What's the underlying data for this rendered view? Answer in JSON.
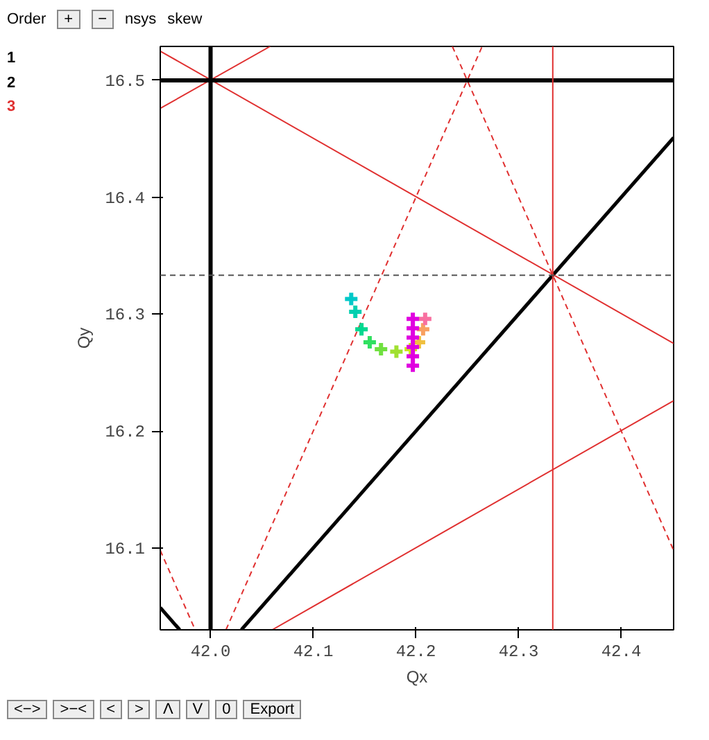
{
  "chart_data": {
    "type": "scatter",
    "xlabel": "Qx",
    "ylabel": "Qy",
    "xlim": [
      41.951,
      42.451
    ],
    "ylim": [
      16.03,
      16.529
    ],
    "xticks": [
      {
        "value": 42.0,
        "label": "42.0"
      },
      {
        "value": 42.1,
        "label": "42.1"
      },
      {
        "value": 42.2,
        "label": "42.2"
      },
      {
        "value": 42.3,
        "label": "42.3"
      },
      {
        "value": 42.4,
        "label": "42.4"
      }
    ],
    "yticks": [
      {
        "value": 16.1,
        "label": "16.1"
      },
      {
        "value": 16.2,
        "label": "16.2"
      },
      {
        "value": 16.3,
        "label": "16.3"
      },
      {
        "value": 16.4,
        "label": "16.4"
      },
      {
        "value": 16.5,
        "label": "16.5"
      }
    ],
    "grid": false,
    "annotations": [
      "Order",
      "+",
      "−",
      "nsys",
      "skew",
      "1",
      "2",
      "3",
      "<−>",
      ">−<",
      "<",
      ">",
      "Λ",
      "V",
      "0",
      "Export"
    ],
    "ref_lines": [
      {
        "axis": "x",
        "value": 42.0,
        "label": null,
        "color": "#000000",
        "line_style": "solid"
      },
      {
        "axis": "y",
        "value": 16.5,
        "label": null,
        "color": "#000000",
        "line_style": "solid"
      },
      {
        "axis": "x",
        "value": 42.3333,
        "label": null,
        "color": "#e03030",
        "line_style": "solid"
      },
      {
        "axis": "y",
        "value": 16.3333,
        "label": null,
        "color": "#555555",
        "line_style": "dashed"
      }
    ],
    "series": [
      {
        "type": "line",
        "color": "#000000",
        "line_style": "solid",
        "x": [
          42.03,
          42.451
        ],
        "values": [
          16.03,
          16.451
        ]
      },
      {
        "type": "line",
        "color": "#000000",
        "line_style": "solid",
        "x": [
          41.951,
          41.97
        ],
        "values": [
          16.049,
          16.03
        ]
      },
      {
        "type": "line",
        "color": "#e03030",
        "line_style": "solid",
        "x": [
          41.951,
          42.451
        ],
        "values": [
          16.525,
          16.275
        ]
      },
      {
        "type": "line",
        "color": "#e03030",
        "line_style": "solid",
        "x": [
          41.951,
          42.058
        ],
        "values": [
          16.476,
          16.529
        ]
      },
      {
        "type": "line",
        "color": "#e03030",
        "line_style": "solid",
        "x": [
          42.06,
          42.451
        ],
        "values": [
          16.03,
          16.226
        ]
      },
      {
        "type": "line",
        "color": "#e03030",
        "line_style": "dashed",
        "x": [
          42.015,
          42.2645
        ],
        "values": [
          16.03,
          16.529
        ]
      },
      {
        "type": "line",
        "color": "#e03030",
        "line_style": "dashed",
        "x": [
          42.2355,
          42.451
        ],
        "values": [
          16.529,
          16.098
        ]
      },
      {
        "type": "line",
        "color": "#e03030",
        "line_style": "dashed",
        "x": [
          41.951,
          41.985
        ],
        "values": [
          16.098,
          16.03
        ]
      },
      {
        "marker": "cross",
        "x": [
          42.137,
          42.141,
          42.147,
          42.155,
          42.166,
          42.181,
          42.195,
          42.203,
          42.207,
          42.209
        ],
        "values": [
          16.313,
          16.302,
          16.287,
          16.276,
          16.27,
          16.268,
          16.27,
          16.276,
          16.287,
          16.296
        ],
        "colors": [
          "#00c8c8",
          "#00d0b0",
          "#00d890",
          "#30e060",
          "#70e040",
          "#a0e030",
          "#d0e020",
          "#f0c040",
          "#f8a060",
          "#f870a0"
        ]
      },
      {
        "marker": "cross",
        "x": [
          42.197,
          42.197,
          42.197,
          42.197,
          42.197,
          42.197
        ],
        "values": [
          16.256,
          16.264,
          16.272,
          16.28,
          16.288,
          16.296
        ],
        "colors": [
          "#e000e0",
          "#e000e0",
          "#e000e0",
          "#e000e0",
          "#e000e0",
          "#e000e0"
        ]
      }
    ]
  }
}
